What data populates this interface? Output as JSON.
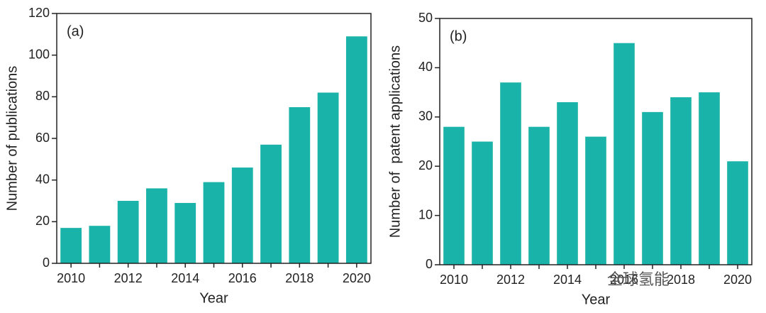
{
  "chart_data": [
    {
      "type": "bar",
      "annotation": "(a)",
      "x_label": "Year",
      "y_label": "Number of publications",
      "categories": [
        "2010",
        null,
        "2012",
        null,
        "2014",
        null,
        "2016",
        null,
        "2018",
        null,
        "2020"
      ],
      "values": [
        17,
        18,
        30,
        36,
        29,
        39,
        46,
        57,
        75,
        82,
        109
      ],
      "color": "#1ab3aa",
      "ylim": [
        0,
        120
      ],
      "yticks": [
        0,
        20,
        40,
        60,
        80,
        100,
        120
      ]
    },
    {
      "type": "bar",
      "annotation": "(b)",
      "x_label": "Year",
      "y_label": "Number of  patent applications",
      "categories": [
        "2010",
        null,
        "2012",
        null,
        "2014",
        null,
        "2016",
        null,
        "2018",
        null,
        "2020"
      ],
      "values": [
        28,
        25,
        37,
        28,
        33,
        26,
        45,
        31,
        34,
        35,
        21
      ],
      "color": "#1ab3aa",
      "ylim": [
        0,
        50
      ],
      "yticks": [
        0,
        10,
        20,
        30,
        40,
        50
      ]
    }
  ],
  "watermark": "全球氢能"
}
